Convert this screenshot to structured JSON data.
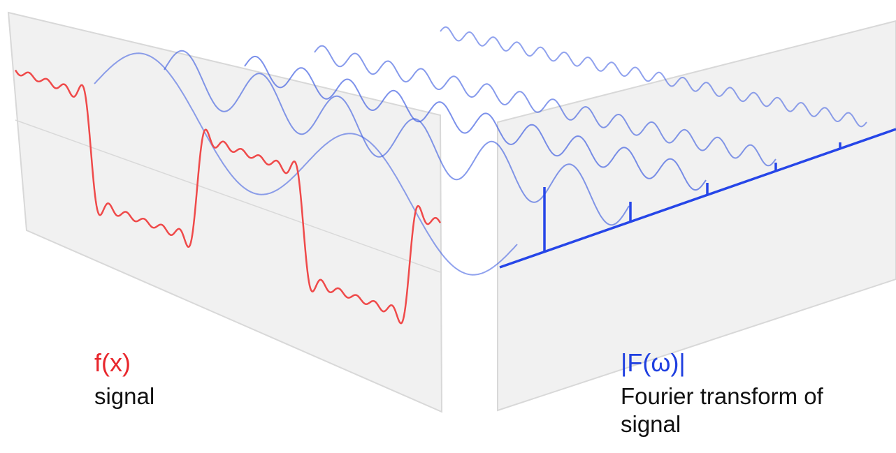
{
  "signal_label": {
    "symbol": "f(x)",
    "caption": "signal"
  },
  "transform_label": {
    "symbol": "|F(ω)|",
    "caption": "Fourier transform of signal"
  }
}
